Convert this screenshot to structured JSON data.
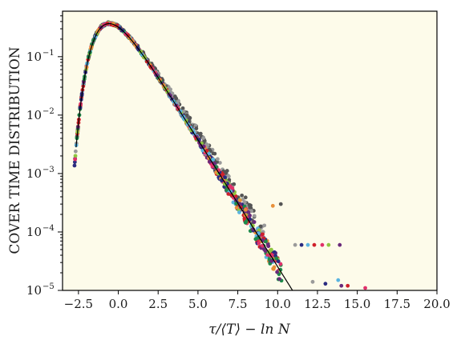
{
  "chart_data": {
    "type": "scatter",
    "xlabel": "τ/⟨T⟩ − ln N",
    "ylabel": "COVER TIME DISTRIBUTION",
    "xlim": [
      -3.5,
      20.0
    ],
    "ylim": [
      1e-05,
      0.6
    ],
    "yscale": "log",
    "grid": false,
    "legend": "none",
    "x_ticks": [
      -2.5,
      0.0,
      2.5,
      5.0,
      7.5,
      10.0,
      12.5,
      15.0,
      17.5,
      20.0
    ],
    "x_tick_labels": [
      "−2.5",
      "0.0",
      "2.5",
      "5.0",
      "7.5",
      "10.0",
      "12.5",
      "15.0",
      "17.5",
      "20.0"
    ],
    "y_ticks": [
      1e-05,
      0.0001,
      0.001,
      0.01,
      0.1
    ],
    "y_tick_labels": [
      {
        "base": "10",
        "exp": "−5"
      },
      {
        "base": "10",
        "exp": "−4"
      },
      {
        "base": "10",
        "exp": "−3"
      },
      {
        "base": "10",
        "exp": "−2"
      },
      {
        "base": "10",
        "exp": "−1"
      }
    ],
    "background_color": "#fdfbea",
    "curve": {
      "description": "Gumbel density exp(-(x+γ) - exp(-(x+γ)))",
      "gamma": 0.5772,
      "color": "#000000"
    },
    "series_colors": [
      "#9a9a9a",
      "#555555",
      "#e0306a",
      "#2b2b80",
      "#e8903a",
      "#8ec63f",
      "#5ab4e0",
      "#1e8a4a",
      "#6a2a7a",
      "#d0202a"
    ],
    "outliers": [
      {
        "x": 11.1,
        "y": 6e-05
      },
      {
        "x": 11.5,
        "y": 6e-05
      },
      {
        "x": 11.9,
        "y": 6e-05
      },
      {
        "x": 12.3,
        "y": 6e-05
      },
      {
        "x": 12.8,
        "y": 6e-05
      },
      {
        "x": 13.2,
        "y": 6e-05
      },
      {
        "x": 13.9,
        "y": 6e-05
      },
      {
        "x": 10.2,
        "y": 0.0003
      },
      {
        "x": 9.7,
        "y": 0.00028
      },
      {
        "x": 10.9,
        "y": 1e-05
      },
      {
        "x": 12.2,
        "y": 1.4e-05
      },
      {
        "x": 13.0,
        "y": 1.3e-05
      },
      {
        "x": 13.8,
        "y": 1.5e-05
      },
      {
        "x": 14.4,
        "y": 1.2e-05
      },
      {
        "x": 15.5,
        "y": 1.1e-05
      },
      {
        "x": 16.4,
        "y": 1e-05
      },
      {
        "x": 14.0,
        "y": 1.2e-05
      }
    ]
  }
}
